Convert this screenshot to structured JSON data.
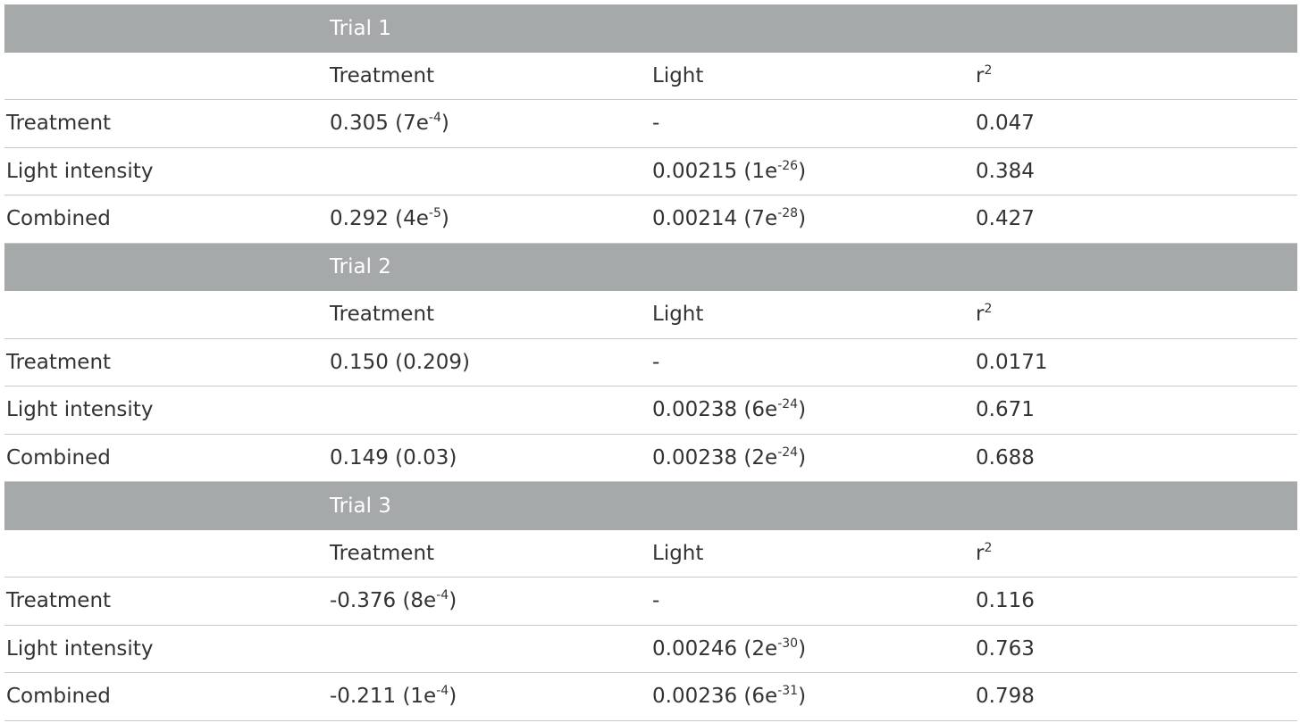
{
  "sections": [
    {
      "title": "Trial 1",
      "header": [
        "Treatment",
        "Light",
        {
          "text": "r",
          "sup": "2"
        }
      ],
      "rows": [
        {
          "label": "Treatment",
          "cells": [
            {
              "text": "0.305 (7e",
              "sup": "-4",
              "after": ")"
            },
            "-",
            "0.047"
          ]
        },
        {
          "label": "Light intensity",
          "cells": [
            null,
            {
              "text": "0.00215 (1e",
              "sup": "-26",
              "after": ")"
            },
            "0.384"
          ]
        },
        {
          "label": "Combined",
          "cells": [
            {
              "text": "0.292 (4e",
              "sup": "-5",
              "after": ")"
            },
            {
              "text": "0.00214 (7e",
              "sup": "-28",
              "after": ")"
            },
            "0.427"
          ]
        }
      ]
    },
    {
      "title": "Trial 2",
      "header": [
        "Treatment",
        "Light",
        {
          "text": "r",
          "sup": "2"
        }
      ],
      "rows": [
        {
          "label": "Treatment",
          "cells": [
            "0.150 (0.209)",
            "-",
            "0.0171"
          ]
        },
        {
          "label": "Light intensity",
          "cells": [
            null,
            {
              "text": "0.00238 (6e",
              "sup": "-24",
              "after": ")"
            },
            "0.671"
          ]
        },
        {
          "label": "Combined",
          "cells": [
            "0.149 (0.03)",
            {
              "text": "0.00238 (2e",
              "sup": "-24",
              "after": ")"
            },
            "0.688"
          ]
        }
      ]
    },
    {
      "title": "Trial 3",
      "header": [
        "Treatment",
        "Light",
        {
          "text": "r",
          "sup": "2"
        }
      ],
      "rows": [
        {
          "label": "Treatment",
          "cells": [
            {
              "text": "-0.376 (8e",
              "sup": "-4",
              "after": ")"
            },
            "-",
            "0.116"
          ]
        },
        {
          "label": "Light intensity",
          "cells": [
            null,
            {
              "text": "0.00246 (2e",
              "sup": "-30",
              "after": ")"
            },
            "0.763"
          ]
        },
        {
          "label": "Combined",
          "cells": [
            {
              "text": "-0.211 (1e",
              "sup": "-4",
              "after": ")"
            },
            {
              "text": "0.00236 (6e",
              "sup": "-31",
              "after": ")"
            },
            "0.798"
          ]
        }
      ]
    }
  ]
}
